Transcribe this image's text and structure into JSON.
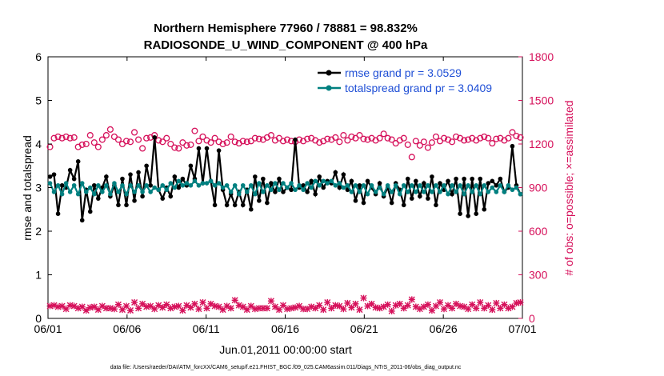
{
  "chart_data": {
    "type": "line",
    "title": "Northern Hemisphere 77960 / 78881 = 98.832%",
    "subtitle": "RADIOSONDE_U_WIND_COMPONENT @ 400 hPa",
    "xlabel": "Jun.01,2011 00:00:00 start",
    "ylabel": "rmse and totalspread",
    "y2label": "# of obs: o=possible; ×=assimilated",
    "footnote": "data file: /Users/raeder/DAI/ATM_forcXX/CAM6_setup/f.e21.FHIST_BGC.f09_025.CAM6assim.011/Diags_NTrS_2011-06/obs_diag_output.nc",
    "xticks": [
      "06/01",
      "06/06",
      "06/11",
      "06/16",
      "06/21",
      "06/26",
      "07/01"
    ],
    "xlim": [
      0,
      30
    ],
    "ylim": [
      0,
      6
    ],
    "yticks": [
      0,
      1,
      2,
      3,
      4,
      5,
      6
    ],
    "y2lim": [
      0,
      1800
    ],
    "y2ticks": [
      0,
      300,
      600,
      900,
      1200,
      1500,
      1800
    ],
    "legend_position": "top-right",
    "colors": {
      "rmse": "#000000",
      "totalspread": "#008080",
      "obs": "#d6115b",
      "legend_text": "#1f4fd6",
      "right_axis": "#d6115b"
    },
    "series": [
      {
        "name": "rmse grand pr = 3.0529",
        "axis": "left",
        "values": [
          3.25,
          3.3,
          2.4,
          3.05,
          3.0,
          3.4,
          3.2,
          3.6,
          2.25,
          2.95,
          2.45,
          3.05,
          2.75,
          3.0,
          3.25,
          2.8,
          3.05,
          2.6,
          3.2,
          2.6,
          3.3,
          2.7,
          3.35,
          2.8,
          3.5,
          3.05,
          4.15,
          2.95,
          2.75,
          3.0,
          2.8,
          3.25,
          3.0,
          3.2,
          3.05,
          3.5,
          3.2,
          3.9,
          3.1,
          3.9,
          3.15,
          2.6,
          3.85,
          2.95,
          2.6,
          2.85,
          2.6,
          2.9,
          2.6,
          2.95,
          2.5,
          3.25,
          2.7,
          3.2,
          2.65,
          3.1,
          2.9,
          3.2,
          2.9,
          3.0,
          2.95,
          4.1,
          3.0,
          3.05,
          2.9,
          3.15,
          2.85,
          3.25,
          3.0,
          3.15,
          3.1,
          3.35,
          3.0,
          3.3,
          2.95,
          3.15,
          2.7,
          3.05,
          2.65,
          3.15,
          3.0,
          2.85,
          3.1,
          2.8,
          3.0,
          2.65,
          3.1,
          2.95,
          2.6,
          3.2,
          2.75,
          3.15,
          2.8,
          3.1,
          2.75,
          3.25,
          2.6,
          3.1,
          2.95,
          3.15,
          2.85,
          3.2,
          2.4,
          3.2,
          2.35,
          3.2,
          2.4,
          3.2,
          2.5,
          3.1,
          3.15,
          3.05,
          3.2,
          2.9,
          3.0,
          3.95,
          3.05,
          2.85
        ]
      },
      {
        "name": "totalspread grand pr = 3.0409",
        "axis": "left",
        "values": [
          3.1,
          2.9,
          3.05,
          2.85,
          3.1,
          2.9,
          3.05,
          2.85,
          3.1,
          2.9,
          3.0,
          2.85,
          3.05,
          2.9,
          3.05,
          2.85,
          3.1,
          2.9,
          3.05,
          2.85,
          3.05,
          2.9,
          3.05,
          2.9,
          3.05,
          2.9,
          3.0,
          2.95,
          3.05,
          2.95,
          3.1,
          3.0,
          3.15,
          3.05,
          3.1,
          3.05,
          3.15,
          3.05,
          3.1,
          3.1,
          3.15,
          3.05,
          3.1,
          3.0,
          3.05,
          2.9,
          3.05,
          2.85,
          3.05,
          2.9,
          3.05,
          2.85,
          3.1,
          2.9,
          3.05,
          2.95,
          3.1,
          2.95,
          3.1,
          3.0,
          3.1,
          2.95,
          3.05,
          2.95,
          3.1,
          3.0,
          3.15,
          3.05,
          3.15,
          3.1,
          3.15,
          3.05,
          3.1,
          3.0,
          3.05,
          2.9,
          3.05,
          2.9,
          3.05,
          2.85,
          3.05,
          2.9,
          3.0,
          2.85,
          3.05,
          2.9,
          3.05,
          2.85,
          3.05,
          2.9,
          3.05,
          2.9,
          3.05,
          2.9,
          3.05,
          2.9,
          3.05,
          2.9,
          3.05,
          2.85,
          3.05,
          2.9,
          3.05,
          2.85,
          3.05,
          2.9,
          3.05,
          2.85,
          3.05,
          2.9,
          3.0,
          2.9,
          3.05,
          2.9,
          3.05,
          2.95,
          3.0,
          2.85
        ]
      },
      {
        "name": "possible",
        "axis": "right",
        "values": [
          1180,
          1240,
          1250,
          1240,
          1250,
          1240,
          1245,
          1180,
          1195,
          1200,
          1260,
          1210,
          1180,
          1230,
          1260,
          1300,
          1250,
          1230,
          1200,
          1220,
          1215,
          1280,
          1230,
          1170,
          1240,
          1245,
          1260,
          1225,
          1215,
          1240,
          1200,
          1175,
          1170,
          1210,
          1190,
          1195,
          1290,
          1220,
          1250,
          1225,
          1210,
          1240,
          1215,
          1200,
          1210,
          1250,
          1215,
          1205,
          1220,
          1215,
          1220,
          1240,
          1235,
          1230,
          1245,
          1260,
          1225,
          1240,
          1220,
          1230,
          1220,
          1215,
          1230,
          1220,
          1235,
          1240,
          1225,
          1210,
          1220,
          1235,
          1230,
          1245,
          1215,
          1260,
          1225,
          1250,
          1240,
          1260,
          1235,
          1230,
          1240,
          1225,
          1240,
          1270,
          1240,
          1230,
          1205,
          1225,
          1240,
          1195,
          1110,
          1220,
          1190,
          1215,
          1175,
          1210,
          1250,
          1220,
          1240,
          1230,
          1215,
          1250,
          1240,
          1225,
          1230,
          1240,
          1225,
          1240,
          1250,
          1240,
          1205,
          1235,
          1240,
          1225,
          1240,
          1280,
          1255,
          1245
        ]
      },
      {
        "name": "assimilated",
        "axis": "right",
        "values": [
          85,
          90,
          80,
          85,
          65,
          90,
          85,
          70,
          80,
          55,
          75,
          80,
          60,
          85,
          70,
          70,
          65,
          95,
          60,
          85,
          55,
          110,
          70,
          100,
          80,
          85,
          65,
          90,
          75,
          95,
          70,
          80,
          85,
          55,
          90,
          75,
          100,
          65,
          110,
          70,
          100,
          85,
          80,
          60,
          85,
          70,
          125,
          90,
          80,
          60,
          85,
          65,
          70,
          70,
          70,
          120,
          80,
          60,
          90,
          65,
          70,
          75,
          85,
          65,
          65,
          80,
          70,
          90,
          60,
          110,
          70,
          90,
          85,
          65,
          105,
          75,
          100,
          60,
          140,
          85,
          100,
          75,
          70,
          80,
          95,
          50,
          90,
          100,
          70,
          90,
          130,
          80,
          65,
          80,
          95,
          55,
          85,
          110,
          65,
          90,
          70,
          100,
          85,
          80,
          65,
          95,
          70,
          110,
          70,
          90,
          60,
          105,
          70,
          95,
          70,
          80,
          105,
          110
        ]
      }
    ]
  }
}
